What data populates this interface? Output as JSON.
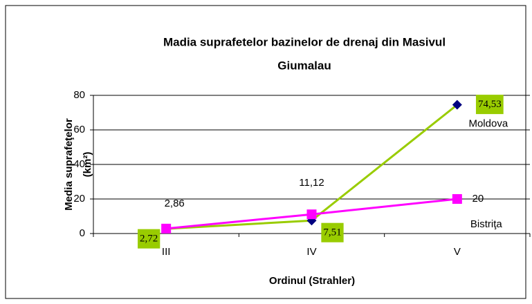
{
  "chart_data": {
    "type": "line",
    "title": [
      "Madia suprafetelor bazinelor de drenaj din Masivul",
      "Giumalau"
    ],
    "xlabel": "Ordinul (Strahler)",
    "ylabel": [
      "Media suprafeţelor",
      "(km²)"
    ],
    "categories": [
      "III",
      "IV",
      "V"
    ],
    "series": [
      {
        "name": "Moldova",
        "color": "#99cc00",
        "marker_color": "#000080",
        "marker": "diamond",
        "values": [
          2.72,
          7.51,
          74.53
        ],
        "value_labels": [
          "2,72",
          "7,51",
          "74,53"
        ]
      },
      {
        "name": "Bistriţa",
        "color": "#ff00ff",
        "marker_color": "#ff00ff",
        "marker": "square",
        "values": [
          2.86,
          11.12,
          20
        ],
        "value_labels": [
          "2,86",
          "11,12",
          "20"
        ]
      }
    ],
    "ylim": [
      0,
      80
    ],
    "yticks": [
      0,
      20,
      40,
      60,
      80
    ],
    "grid": true
  }
}
